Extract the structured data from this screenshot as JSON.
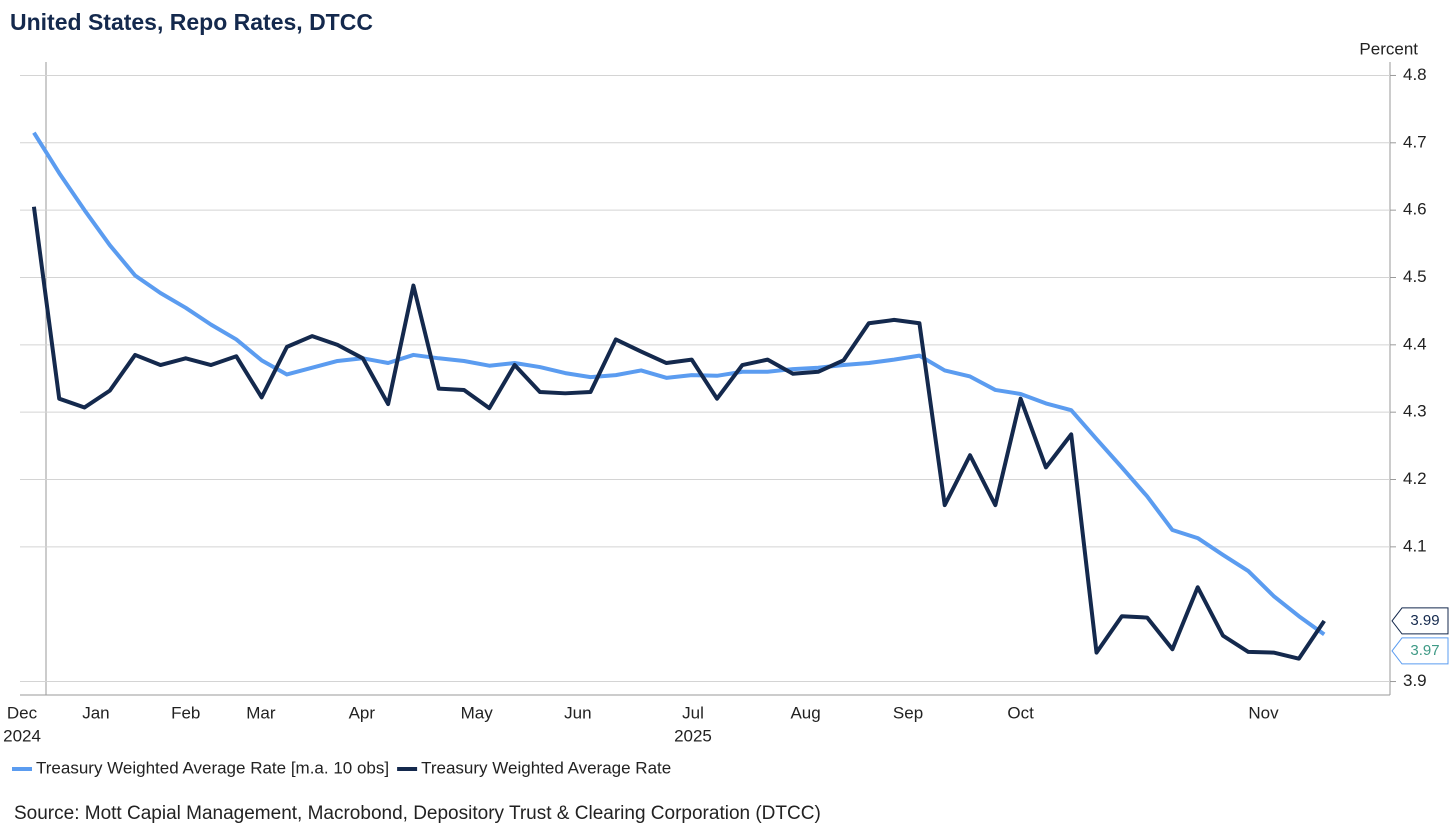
{
  "chart_data": {
    "type": "line",
    "title": "United States, Repo Rates, DTCC",
    "ylabel": "Percent",
    "source": "Source: Mott Capial Management, Macrobond, Depository Trust & Clearing Corporation (DTCC)",
    "x": [
      0,
      1,
      2,
      3,
      4,
      5,
      6,
      7,
      8,
      9,
      10,
      11,
      12,
      13,
      14,
      15,
      16,
      17,
      18,
      19,
      20,
      21,
      22,
      23,
      24,
      25,
      26,
      27,
      28,
      29,
      30,
      31,
      32,
      33,
      34,
      35,
      36,
      37,
      38,
      39,
      40,
      41,
      42,
      43,
      44,
      45,
      46,
      47,
      48,
      49,
      50,
      51
    ],
    "xlim": [
      -0.55,
      53.6
    ],
    "xticks": [
      {
        "value": -0.47,
        "label": "Dec"
      },
      {
        "value": 2.45,
        "label": "Jan"
      },
      {
        "value": 6.0,
        "label": "Feb"
      },
      {
        "value": 8.97,
        "label": "Mar"
      },
      {
        "value": 12.96,
        "label": "Apr"
      },
      {
        "value": 17.5,
        "label": "May"
      },
      {
        "value": 21.5,
        "label": "Jun"
      },
      {
        "value": 26.05,
        "label": "Jul"
      },
      {
        "value": 30.5,
        "label": "Aug"
      },
      {
        "value": 34.55,
        "label": "Sep"
      },
      {
        "value": 39.0,
        "label": "Oct"
      },
      {
        "value": 48.6,
        "label": "Nov"
      }
    ],
    "year_labels": [
      {
        "value": -0.47,
        "label": "2024"
      },
      {
        "value": 26.05,
        "label": "2025"
      }
    ],
    "ylim": [
      3.88,
      4.82
    ],
    "yticks": [
      3.9,
      4.1,
      4.2,
      4.3,
      4.4,
      4.5,
      4.6,
      4.7,
      4.8
    ],
    "grid": true,
    "series": [
      {
        "name": "Treasury Weighted Average Rate [m.a. 10 obs]",
        "color": "#5b9cf0",
        "values": [
          4.715,
          4.655,
          4.6,
          4.548,
          4.503,
          4.477,
          4.455,
          4.43,
          4.408,
          4.377,
          4.356,
          4.366,
          4.376,
          4.38,
          4.373,
          4.385,
          4.38,
          4.376,
          4.369,
          4.373,
          4.367,
          4.358,
          4.352,
          4.355,
          4.362,
          4.351,
          4.355,
          4.354,
          4.36,
          4.36,
          4.364,
          4.366,
          4.37,
          4.373,
          4.378,
          4.384,
          4.362,
          4.353,
          4.333,
          4.327,
          4.313,
          4.303,
          4.26,
          4.218,
          4.175,
          4.125,
          4.113,
          4.088,
          4.064,
          4.027,
          3.997,
          3.97
        ],
        "end_label": 3.97
      },
      {
        "name": "Treasury Weighted Average Rate",
        "color": "#14294d",
        "values": [
          4.605,
          4.32,
          4.307,
          4.332,
          4.385,
          4.37,
          4.38,
          4.37,
          4.383,
          4.322,
          4.397,
          4.413,
          4.4,
          4.38,
          4.312,
          4.488,
          4.335,
          4.333,
          4.306,
          4.37,
          4.33,
          4.328,
          4.33,
          4.408,
          4.39,
          4.373,
          4.378,
          4.32,
          4.37,
          4.378,
          4.357,
          4.36,
          4.377,
          4.432,
          4.437,
          4.432,
          4.162,
          4.236,
          4.162,
          4.32,
          4.218,
          4.267,
          3.943,
          3.997,
          3.995,
          3.948,
          4.04,
          3.968,
          3.944,
          3.943,
          3.934,
          3.99
        ],
        "end_label": 3.99
      }
    ]
  }
}
